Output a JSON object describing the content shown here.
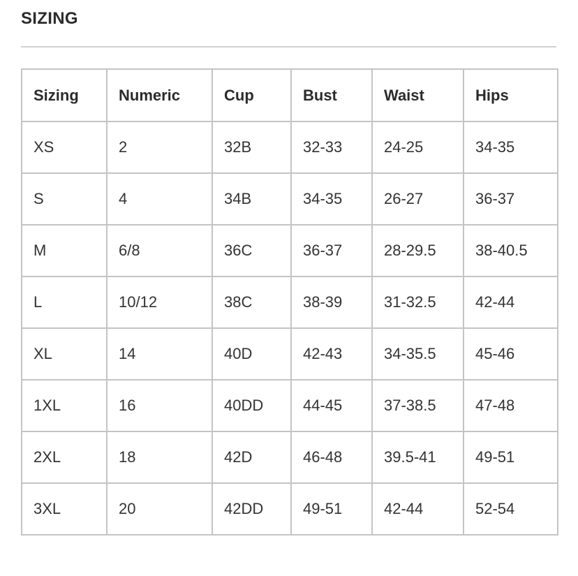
{
  "title": "SIZING",
  "table": {
    "headers": [
      "Sizing",
      "Numeric",
      "Cup",
      "Bust",
      "Waist",
      "Hips"
    ],
    "rows": [
      [
        "XS",
        "2",
        "32B",
        "32-33",
        "24-25",
        "34-35"
      ],
      [
        "S",
        "4",
        "34B",
        "34-35",
        "26-27",
        "36-37"
      ],
      [
        "M",
        "6/8",
        "36C",
        "36-37",
        "28-29.5",
        "38-40.5"
      ],
      [
        "L",
        "10/12",
        "38C",
        "38-39",
        "31-32.5",
        "42-44"
      ],
      [
        "XL",
        "14",
        "40D",
        "42-43",
        "34-35.5",
        "45-46"
      ],
      [
        "1XL",
        "16",
        "40DD",
        "44-45",
        "37-38.5",
        "47-48"
      ],
      [
        "2XL",
        "18",
        "42D",
        "46-48",
        "39.5-41",
        "49-51"
      ],
      [
        "3XL",
        "20",
        "42DD",
        "49-51",
        "42-44",
        "52-54"
      ]
    ]
  }
}
